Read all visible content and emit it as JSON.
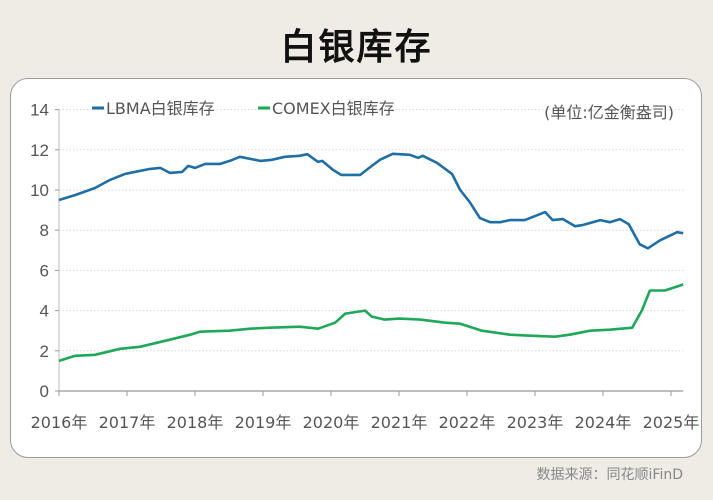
{
  "title": "白银库存",
  "source": "数据来源：同花顺iFinD",
  "chart_data": {
    "type": "line",
    "title": "白银库存",
    "unit_note": "(单位:亿金衡盎司)",
    "xlim": [
      2016,
      2025.18
    ],
    "ylim": [
      0,
      14
    ],
    "yticks": [
      0,
      2,
      4,
      6,
      8,
      10,
      12,
      14
    ],
    "xticks": [
      2016,
      2017,
      2018,
      2019,
      2020,
      2021,
      2022,
      2023,
      2024,
      2025
    ],
    "xtick_labels": [
      "2016年",
      "2017年",
      "2018年",
      "2019年",
      "2020年",
      "2021年",
      "2022年",
      "2023年",
      "2024年",
      "2025年"
    ],
    "grid": "horizontal dotted",
    "legend": "top-left",
    "series": [
      {
        "name": "LBMA白银库存",
        "color": "#1f6fa5",
        "x": [
          2016.0,
          2016.24,
          2016.53,
          2016.75,
          2016.97,
          2017.34,
          2017.49,
          2017.63,
          2017.81,
          2017.9,
          2018.0,
          2018.15,
          2018.37,
          2018.51,
          2018.66,
          2018.96,
          2019.13,
          2019.32,
          2019.54,
          2019.65,
          2019.81,
          2019.87,
          2020.03,
          2020.15,
          2020.43,
          2020.6,
          2020.72,
          2020.91,
          2021.16,
          2021.28,
          2021.35,
          2021.56,
          2021.78,
          2021.9,
          2022.04,
          2022.19,
          2022.34,
          2022.49,
          2022.63,
          2022.85,
          2023.0,
          2023.15,
          2023.26,
          2023.41,
          2023.59,
          2023.69,
          2023.96,
          2024.1,
          2024.25,
          2024.38,
          2024.54,
          2024.66,
          2024.84,
          2025.09,
          2025.18
        ],
        "y": [
          9.5,
          9.75,
          10.1,
          10.5,
          10.8,
          11.05,
          11.1,
          10.85,
          10.9,
          11.2,
          11.1,
          11.3,
          11.3,
          11.45,
          11.65,
          11.45,
          11.5,
          11.65,
          11.7,
          11.78,
          11.4,
          11.45,
          11.0,
          10.75,
          10.75,
          11.2,
          11.5,
          11.8,
          11.75,
          11.6,
          11.7,
          11.35,
          10.8,
          10.0,
          9.4,
          8.6,
          8.4,
          8.4,
          8.5,
          8.5,
          8.7,
          8.9,
          8.5,
          8.55,
          8.2,
          8.25,
          8.5,
          8.4,
          8.55,
          8.3,
          7.3,
          7.1,
          7.5,
          7.9,
          7.85
        ]
      },
      {
        "name": "COMEX白银库存",
        "color": "#1fa75a",
        "x": [
          2016.0,
          2016.24,
          2016.53,
          2016.9,
          2017.19,
          2017.56,
          2017.93,
          2018.07,
          2018.51,
          2018.81,
          2019.1,
          2019.54,
          2019.81,
          2020.06,
          2020.21,
          2020.5,
          2020.6,
          2020.79,
          2021.01,
          2021.31,
          2021.68,
          2021.9,
          2022.22,
          2022.63,
          2022.93,
          2023.29,
          2023.51,
          2023.81,
          2024.1,
          2024.43,
          2024.57,
          2024.69,
          2024.91,
          2025.18
        ],
        "y": [
          1.5,
          1.75,
          1.8,
          2.1,
          2.2,
          2.5,
          2.8,
          2.95,
          3.0,
          3.1,
          3.15,
          3.2,
          3.1,
          3.4,
          3.85,
          4.0,
          3.7,
          3.55,
          3.6,
          3.55,
          3.4,
          3.35,
          3.0,
          2.8,
          2.75,
          2.7,
          2.8,
          3.0,
          3.05,
          3.15,
          4.0,
          5.0,
          5.0,
          5.3
        ]
      }
    ]
  }
}
